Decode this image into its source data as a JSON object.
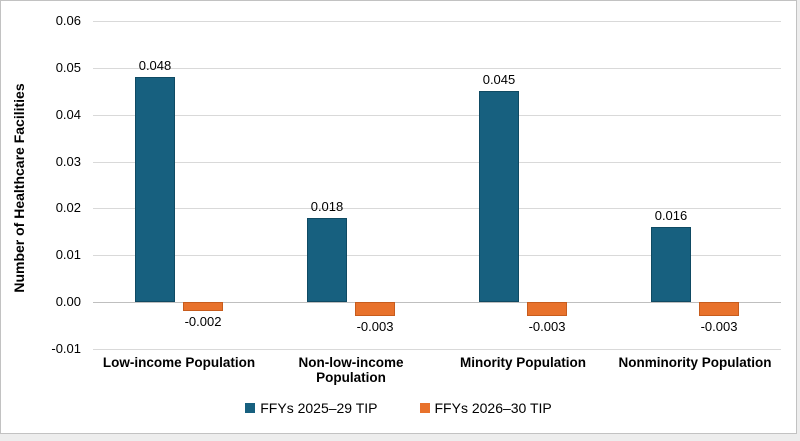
{
  "chart_data": {
    "type": "bar",
    "title": "",
    "xlabel": "",
    "ylabel": "Number of Healthcare Facilities",
    "categories": [
      "Low-income Population",
      "Non-low-income Population",
      "Minority Population",
      "Nonminority Population"
    ],
    "series": [
      {
        "name": "FFYs 2025–29 TIP",
        "color": "#17607F",
        "border_color": "#0F4A63",
        "values": [
          0.048,
          0.018,
          0.045,
          0.016
        ],
        "labels": [
          "0.048",
          "0.018",
          "0.045",
          "0.016"
        ]
      },
      {
        "name": "FFYs 2026–30 TIP",
        "color": "#E8722C",
        "border_color": "#C75C1D",
        "values": [
          -0.002,
          -0.003,
          -0.003,
          -0.003
        ],
        "labels": [
          "-0.002",
          "-0.003",
          "-0.003",
          "-0.003"
        ]
      }
    ],
    "ylim": [
      -0.01,
      0.06
    ],
    "yticks": [
      {
        "value": 0.06,
        "label": "0.06"
      },
      {
        "value": 0.05,
        "label": "0.05"
      },
      {
        "value": 0.04,
        "label": "0.04"
      },
      {
        "value": 0.03,
        "label": "0.03"
      },
      {
        "value": 0.02,
        "label": "0.02"
      },
      {
        "value": 0.01,
        "label": "0.01"
      },
      {
        "value": 0.0,
        "label": "0.00"
      },
      {
        "value": -0.01,
        "label": "-0.01"
      }
    ],
    "grid": true,
    "legend_position": "bottom",
    "colors": {
      "gridline": "#d9d9d9",
      "zero_line": "#bfbfbf",
      "text": "#000000",
      "frame_border": "#c2c2c2",
      "background": "#ffffff",
      "outer_background": "#ededed"
    }
  }
}
